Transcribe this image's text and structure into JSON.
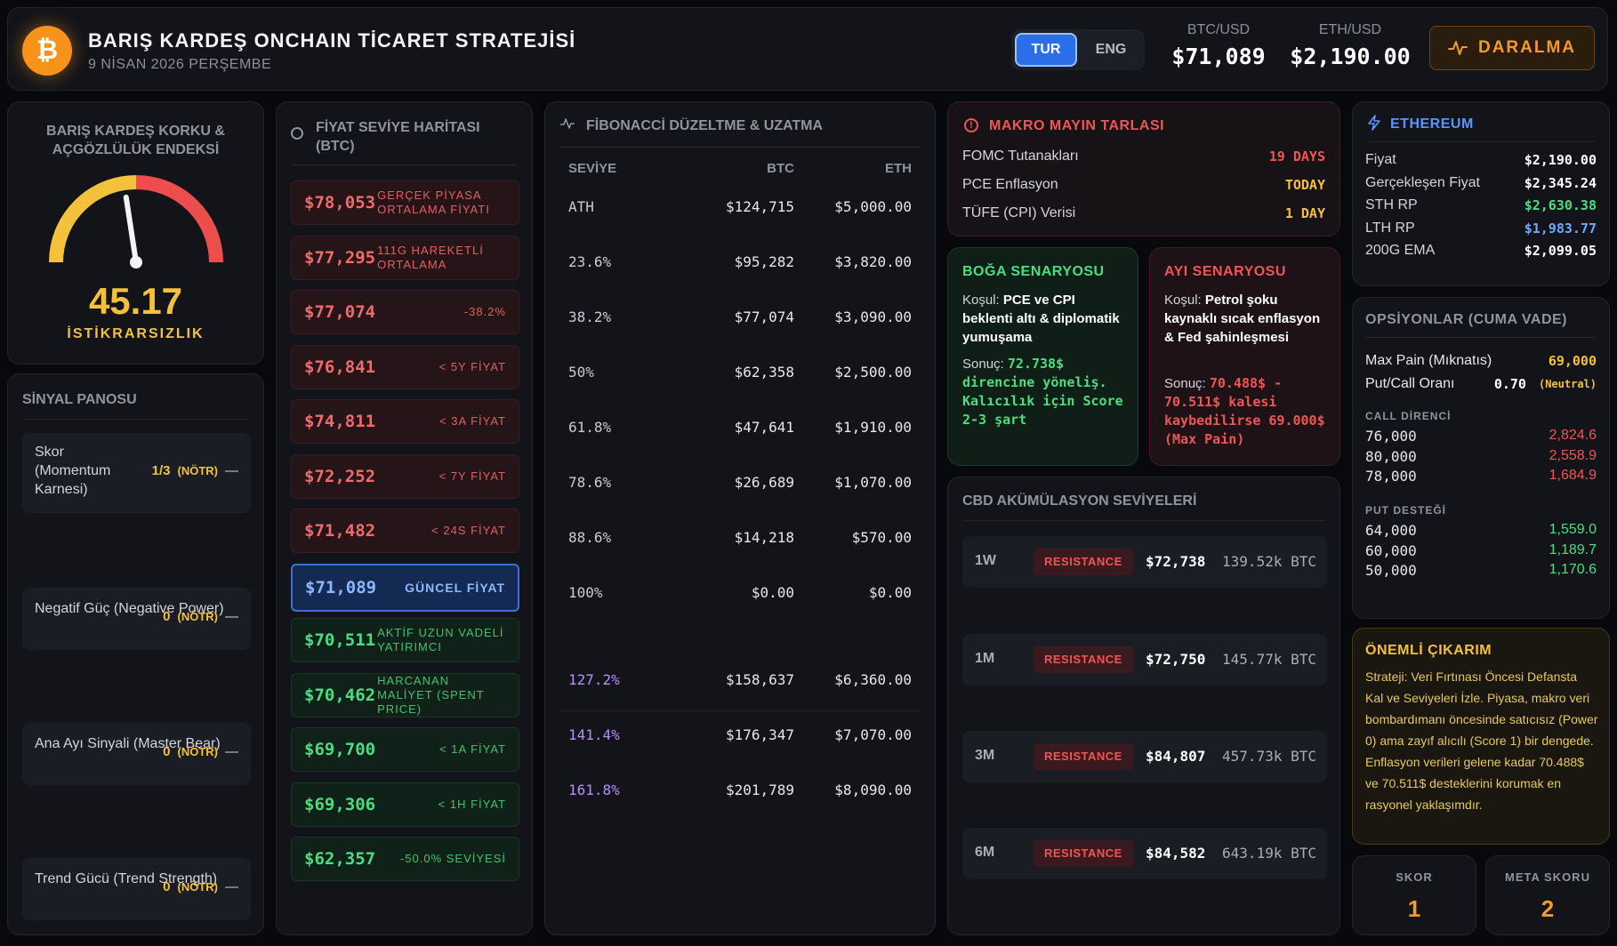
{
  "header": {
    "logo_symbol": "₿",
    "title": "BARIŞ KARDEŞ ONCHAIN TİCARET STRATEJİSİ",
    "date": "9 NİSAN 2026 PERŞEMBE",
    "lang_tur": "TUR",
    "lang_eng": "ENG",
    "btc_label": "BTC/USD",
    "btc_price": "$71,089",
    "eth_label": "ETH/USD",
    "eth_price": "$2,190.00",
    "status_icon": "pulse-icon",
    "status": "DARALMA"
  },
  "fear_greed": {
    "title": "BARIŞ KARDEŞ KORKU & AÇGÖZLÜLÜK ENDEKSİ",
    "value": "45.17",
    "value_fraction": 0.4517,
    "label": "İSTİKRARSIZLIK"
  },
  "signal_panel": {
    "title": "SİNYAL PANOSU",
    "items": [
      {
        "name": "Skor (Momentum Karnesi)",
        "value": "1/3",
        "status": "(NÖTR)",
        "trend": "—"
      },
      {
        "name": "Negatif Güç (Negative Power)",
        "value": "0",
        "status": "(NÖTR)",
        "trend": "—"
      },
      {
        "name": "Ana Ayı Sinyali (Master Bear)",
        "value": "0",
        "status": "(NÖTR)",
        "trend": "—"
      },
      {
        "name": "Trend Gücü (Trend Strength)",
        "value": "0",
        "status": "(NÖTR)",
        "trend": "—"
      }
    ]
  },
  "price_map": {
    "title": "FİYAT SEVİYE HARİTASI (BTC)",
    "levels": [
      {
        "price": "$78,053",
        "label": "GERÇEK PİYASA ORTALAMA FİYATI",
        "kind": "red",
        "align": "left"
      },
      {
        "price": "$77,295",
        "label": "111G HAREKETLİ ORTALAMA",
        "kind": "red",
        "align": "left"
      },
      {
        "price": "$77,074",
        "label": "-38.2%",
        "kind": "red",
        "align": "right"
      },
      {
        "price": "$76,841",
        "label": "< 5Y FİYAT",
        "kind": "red",
        "align": "right"
      },
      {
        "price": "$74,811",
        "label": "< 3A FİYAT",
        "kind": "red",
        "align": "right"
      },
      {
        "price": "$72,252",
        "label": "< 7Y FİYAT",
        "kind": "red",
        "align": "right"
      },
      {
        "price": "$71,482",
        "label": "< 24S FİYAT",
        "kind": "red",
        "align": "right"
      },
      {
        "price": "$71,089",
        "label": "GÜNCEL FİYAT",
        "kind": "cur",
        "align": "right"
      },
      {
        "price": "$70,511",
        "label": "AKTİF UZUN VADELİ YATIRIMCI",
        "kind": "green",
        "align": "left"
      },
      {
        "price": "$70,462",
        "label": "HARCANAN MALİYET (SPENT PRICE)",
        "kind": "green",
        "align": "left"
      },
      {
        "price": "$69,700",
        "label": "< 1A FİYAT",
        "kind": "green",
        "align": "right"
      },
      {
        "price": "$69,306",
        "label": "< 1H FİYAT",
        "kind": "green",
        "align": "right"
      },
      {
        "price": "$62,357",
        "label": "-50.0% SEVİYESİ",
        "kind": "green",
        "align": "right"
      }
    ]
  },
  "fibonacci": {
    "title": "FİBONACCİ DÜZELTME & UZATMA",
    "headers": [
      "SEVİYE",
      "BTC",
      "ETH"
    ],
    "rows": [
      {
        "level": "ATH",
        "btc": "$124,715",
        "eth": "$5,000.00",
        "ext": false
      },
      {
        "level": "23.6%",
        "btc": "$95,282",
        "eth": "$3,820.00",
        "ext": false
      },
      {
        "level": "38.2%",
        "btc": "$77,074",
        "eth": "$3,090.00",
        "ext": false
      },
      {
        "level": "50%",
        "btc": "$62,358",
        "eth": "$2,500.00",
        "ext": false
      },
      {
        "level": "61.8%",
        "btc": "$47,641",
        "eth": "$1,910.00",
        "ext": false
      },
      {
        "level": "78.6%",
        "btc": "$26,689",
        "eth": "$1,070.00",
        "ext": false
      },
      {
        "level": "88.6%",
        "btc": "$14,218",
        "eth": "$570.00",
        "ext": false
      },
      {
        "level": "100%",
        "btc": "$0.00",
        "eth": "$0.00",
        "ext": false
      },
      {
        "level": "127.2%",
        "btc": "$158,637",
        "eth": "$6,360.00",
        "ext": true
      },
      {
        "level": "141.4%",
        "btc": "$176,347",
        "eth": "$7,070.00",
        "ext": true
      },
      {
        "level": "161.8%",
        "btc": "$201,789",
        "eth": "$8,090.00",
        "ext": true
      }
    ]
  },
  "macro": {
    "title": "MAKRO MAYIN TARLASI",
    "rows": [
      {
        "name": "FOMC Tutanakları",
        "value": "19 DAYS",
        "color": "#f05555"
      },
      {
        "name": "PCE Enflasyon",
        "value": "TODAY",
        "color": "#f3c23a"
      },
      {
        "name": "TÜFE (CPI) Verisi",
        "value": "1 DAY",
        "color": "#f3c23a"
      }
    ]
  },
  "bull": {
    "title": "BOĞA SENARYOSU",
    "cond_prefix": "Koşul:",
    "cond": "PCE ve CPI beklenti altı & diplomatik yumuşama",
    "res_prefix": "Sonuç:",
    "res": "72.738$ direncine yöneliş. Kalıcılık için Score 2-3 şart"
  },
  "bear": {
    "title": "AYI SENARYOSU",
    "cond_prefix": "Koşul:",
    "cond": "Petrol şoku kaynaklı sıcak enflasyon & Fed şahinleşmesi",
    "res_prefix": "Sonuç:",
    "res": "70.488$ - 70.511$ kalesi kaybedilirse 69.000$ (Max Pain)"
  },
  "cbd": {
    "title": "CBD AKÜMÜLASYON SEVİYELERİ",
    "rows": [
      {
        "tf": "1W",
        "badge": "RESISTANCE",
        "price": "$72,738",
        "vol": "139.52k BTC"
      },
      {
        "tf": "1M",
        "badge": "RESISTANCE",
        "price": "$72,750",
        "vol": "145.77k BTC"
      },
      {
        "tf": "3M",
        "badge": "RESISTANCE",
        "price": "$84,807",
        "vol": "457.73k BTC"
      },
      {
        "tf": "6M",
        "badge": "RESISTANCE",
        "price": "$84,582",
        "vol": "643.19k BTC"
      }
    ]
  },
  "ethereum": {
    "title": "ETHEREUM",
    "rows": [
      {
        "k": "Fiyat",
        "v": "$2,190.00",
        "color": "#ffffff"
      },
      {
        "k": "Gerçekleşen Fiyat",
        "v": "$2,345.24",
        "color": "#ffffff"
      },
      {
        "k": "STH RP",
        "v": "$2,630.38",
        "color": "#4ade80"
      },
      {
        "k": "LTH RP",
        "v": "$1,983.77",
        "color": "#6ea8ff"
      },
      {
        "k": "200G EMA",
        "v": "$2,099.05",
        "color": "#ffffff"
      }
    ]
  },
  "options": {
    "title": "OPSİYONLAR (CUMA VADE)",
    "max_pain_label": "Max Pain (Mıknatıs)",
    "max_pain_value": "69,000",
    "pc_label": "Put/Call Oranı",
    "pc_value": "0.70",
    "pc_status": "(Neutral)",
    "call_title": "CALL DİRENCİ",
    "calls": [
      {
        "strike": "76,000",
        "oi": "2,824.6"
      },
      {
        "strike": "80,000",
        "oi": "2,558.9"
      },
      {
        "strike": "78,000",
        "oi": "1,684.9"
      }
    ],
    "put_title": "PUT DESTEĞİ",
    "puts": [
      {
        "strike": "64,000",
        "oi": "1,559.0"
      },
      {
        "strike": "60,000",
        "oi": "1,189.7"
      },
      {
        "strike": "50,000",
        "oi": "1,170.6"
      }
    ]
  },
  "takeaway": {
    "title": "ÖNEMLİ ÇIKARIM",
    "body": "Strateji: Veri Fırtınası Öncesi Defansta Kal ve Seviyeleri İzle. Piyasa, makro veri bombardımanı öncesinde satıcısız (Power 0) ama zayıf alıcılı (Score 1) bir dengede. Enflasyon verileri gelene kadar 70.488$ ve 70.511$ desteklerini korumak en rasyonel yaklaşımdır."
  },
  "scores": {
    "score_label": "SKOR",
    "score_value": "1",
    "meta_label": "META SKORU",
    "meta_value": "2"
  }
}
